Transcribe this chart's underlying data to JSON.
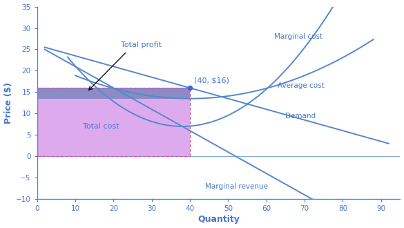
{
  "xlabel": "Quantity",
  "ylabel": "Price ($)",
  "xlim": [
    0,
    95
  ],
  "ylim": [
    -10,
    35
  ],
  "xticks": [
    0,
    10,
    20,
    30,
    40,
    50,
    60,
    70,
    80,
    90
  ],
  "yticks": [
    -10,
    -5,
    0,
    5,
    10,
    15,
    20,
    25,
    30,
    35
  ],
  "curve_color": "#5588cc",
  "label_color": "#4477cc",
  "total_cost_fill": "#ddaaee",
  "total_profit_fill": "#7777bb",
  "point_color": "#4466cc",
  "dashed_color": "#cc55aa",
  "profit_maximizing_qty": 40,
  "profit_maximizing_price": 16,
  "avg_cost_at_qty": 13.5
}
